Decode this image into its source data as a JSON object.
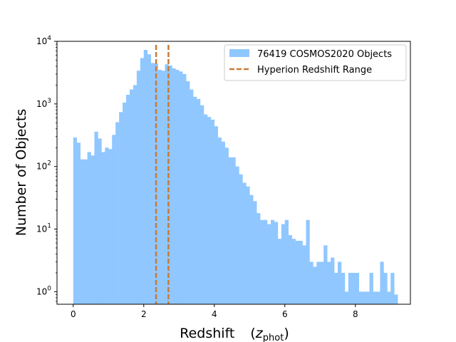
{
  "chart_data": {
    "type": "bar",
    "xlabel": "Redshift",
    "xlabel_symbol": "z",
    "xlabel_subscript": "phot",
    "ylabel": "Number of Objects",
    "xlim": [
      -0.46,
      9.56
    ],
    "ylim": [
      0.63,
      10000
    ],
    "yscale": "log",
    "grid": false,
    "legend_position": "top-right",
    "x_ticks": [
      0,
      2,
      4,
      6,
      8
    ],
    "x_tick_labels": [
      "0",
      "2",
      "4",
      "6",
      "8"
    ],
    "y_ticks": [
      1,
      10,
      100,
      1000,
      10000
    ],
    "y_tick_labels": [
      {
        "base": "10",
        "exp": "0"
      },
      {
        "base": "10",
        "exp": "1"
      },
      {
        "base": "10",
        "exp": "2"
      },
      {
        "base": "10",
        "exp": "3"
      },
      {
        "base": "10",
        "exp": "4"
      }
    ],
    "histogram": {
      "name": "76419 COSMOS2020 Objects",
      "color": "#90c7ff",
      "bin_start": 0.0,
      "bin_width": 0.1,
      "counts": [
        290,
        240,
        130,
        130,
        170,
        150,
        360,
        280,
        170,
        200,
        190,
        320,
        510,
        740,
        1050,
        1400,
        1700,
        2000,
        3400,
        5400,
        7300,
        6200,
        4500,
        4400,
        3500,
        3400,
        4300,
        4100,
        3700,
        3500,
        3300,
        3000,
        2300,
        1700,
        1300,
        1200,
        950,
        680,
        620,
        560,
        440,
        290,
        250,
        200,
        140,
        140,
        100,
        75,
        55,
        48,
        43,
        35,
        25,
        17,
        17,
        14,
        11,
        12,
        9,
        6.5,
        5.5,
        5,
        4.5,
        4,
        3.5,
        3,
        3,
        2.5,
        2,
        2,
        2,
        1.6,
        1.3,
        1.3,
        1.3,
        1.1,
        1.0,
        1.0,
        1.0,
        1.0,
        0.9,
        0.8,
        0.8,
        0.8,
        0.9,
        0.8,
        0.8,
        0.9,
        1,
        1,
        1,
        0.9
      ],
      "counts_override": {
        "50": 35,
        "51": 28,
        "52": 18,
        "53": 14,
        "54": 14,
        "55": 12,
        "56": 14,
        "57": 13,
        "58": 7,
        "59": 12,
        "60": 14,
        "61": 8,
        "62": 7,
        "63": 6.5,
        "64": 6.5,
        "65": 5.5,
        "66": 14,
        "67": 3,
        "68": 2.5,
        "69": 3,
        "70": 3,
        "71": 5.5,
        "72": 3,
        "73": 3.5,
        "74": 2,
        "75": 3,
        "76": 2,
        "77": 1,
        "78": 2,
        "79": 2,
        "80": 2,
        "81": 1,
        "82": 1,
        "83": 1,
        "84": 2,
        "85": 1,
        "86": 1,
        "87": 3,
        "88": 2,
        "89": 1,
        "90": 2
      }
    },
    "vlines": {
      "name": "Hyperion Redshift Range",
      "color": "#c87b37",
      "x": [
        2.35,
        2.7
      ]
    }
  }
}
